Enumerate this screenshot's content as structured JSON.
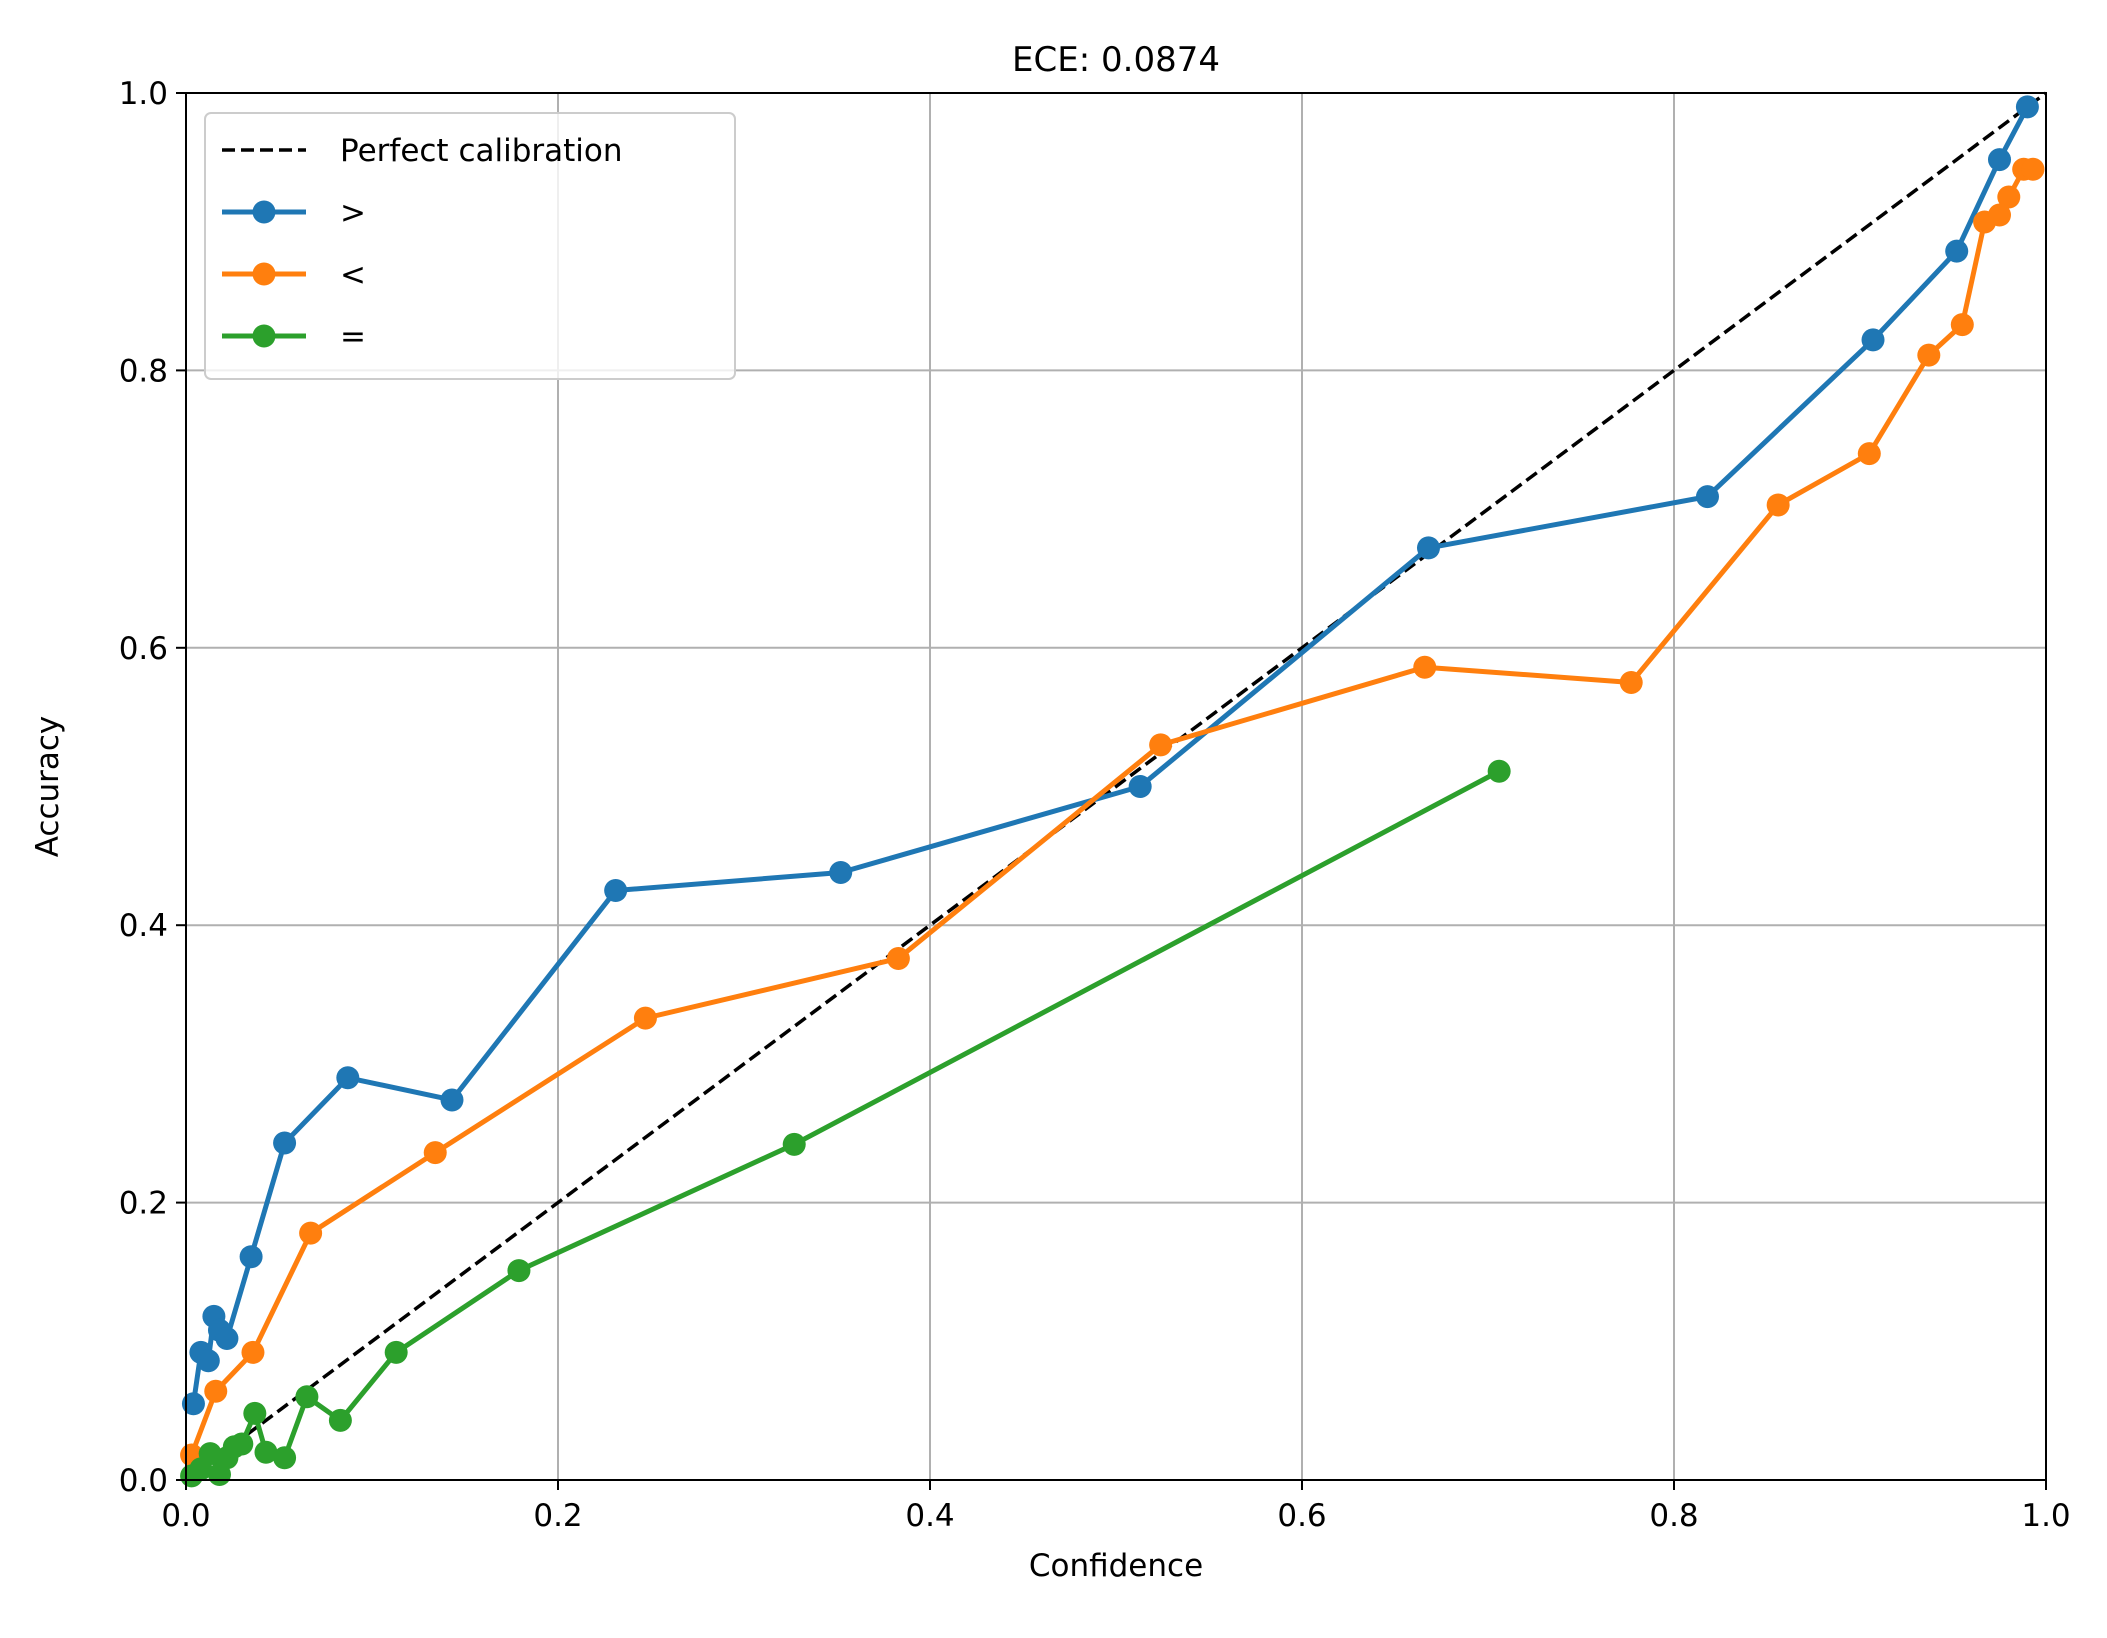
{
  "chart_data": {
    "type": "line",
    "title": "ECE: 0.0874",
    "xlabel": "Confidence",
    "ylabel": "Accuracy",
    "xlim": [
      0,
      1
    ],
    "ylim": [
      0,
      1
    ],
    "xticks": [
      "0.0",
      "0.2",
      "0.4",
      "0.6",
      "0.8",
      "1.0"
    ],
    "yticks": [
      "0.0",
      "0.2",
      "0.4",
      "0.6",
      "0.8",
      "1.0"
    ],
    "grid": true,
    "legend_position": "top-left",
    "reference": {
      "name": "Perfect calibration",
      "style": "dashed",
      "color": "#000000",
      "x": [
        0,
        1
      ],
      "y": [
        0,
        1
      ]
    },
    "series": [
      {
        "name": ">",
        "color": "#1f77b4",
        "x": [
          0.004,
          0.008,
          0.012,
          0.015,
          0.018,
          0.022,
          0.035,
          0.053,
          0.087,
          0.143,
          0.231,
          0.352,
          0.513,
          0.668,
          0.818,
          0.907,
          0.952,
          0.975,
          0.99
        ],
        "y": [
          0.055,
          0.092,
          0.086,
          0.118,
          0.108,
          0.102,
          0.161,
          0.243,
          0.29,
          0.274,
          0.425,
          0.438,
          0.5,
          0.672,
          0.709,
          0.822,
          0.886,
          0.952,
          0.99
        ]
      },
      {
        "name": "<",
        "color": "#ff7f0e",
        "x": [
          0.003,
          0.016,
          0.036,
          0.067,
          0.134,
          0.247,
          0.383,
          0.524,
          0.666,
          0.777,
          0.856,
          0.905,
          0.937,
          0.955,
          0.967,
          0.975,
          0.98,
          0.988,
          0.993
        ],
        "y": [
          0.018,
          0.064,
          0.092,
          0.178,
          0.236,
          0.333,
          0.376,
          0.53,
          0.586,
          0.575,
          0.703,
          0.74,
          0.811,
          0.833,
          0.907,
          0.912,
          0.925,
          0.945,
          0.945
        ]
      },
      {
        "name": "=",
        "color": "#2ca02c",
        "x": [
          0.003,
          0.008,
          0.013,
          0.018,
          0.022,
          0.026,
          0.03,
          0.037,
          0.043,
          0.053,
          0.065,
          0.083,
          0.113,
          0.179,
          0.327,
          0.706
        ],
        "y": [
          0.003,
          0.008,
          0.019,
          0.004,
          0.016,
          0.024,
          0.026,
          0.048,
          0.02,
          0.016,
          0.06,
          0.043,
          0.092,
          0.151,
          0.242,
          0.511
        ]
      }
    ]
  }
}
